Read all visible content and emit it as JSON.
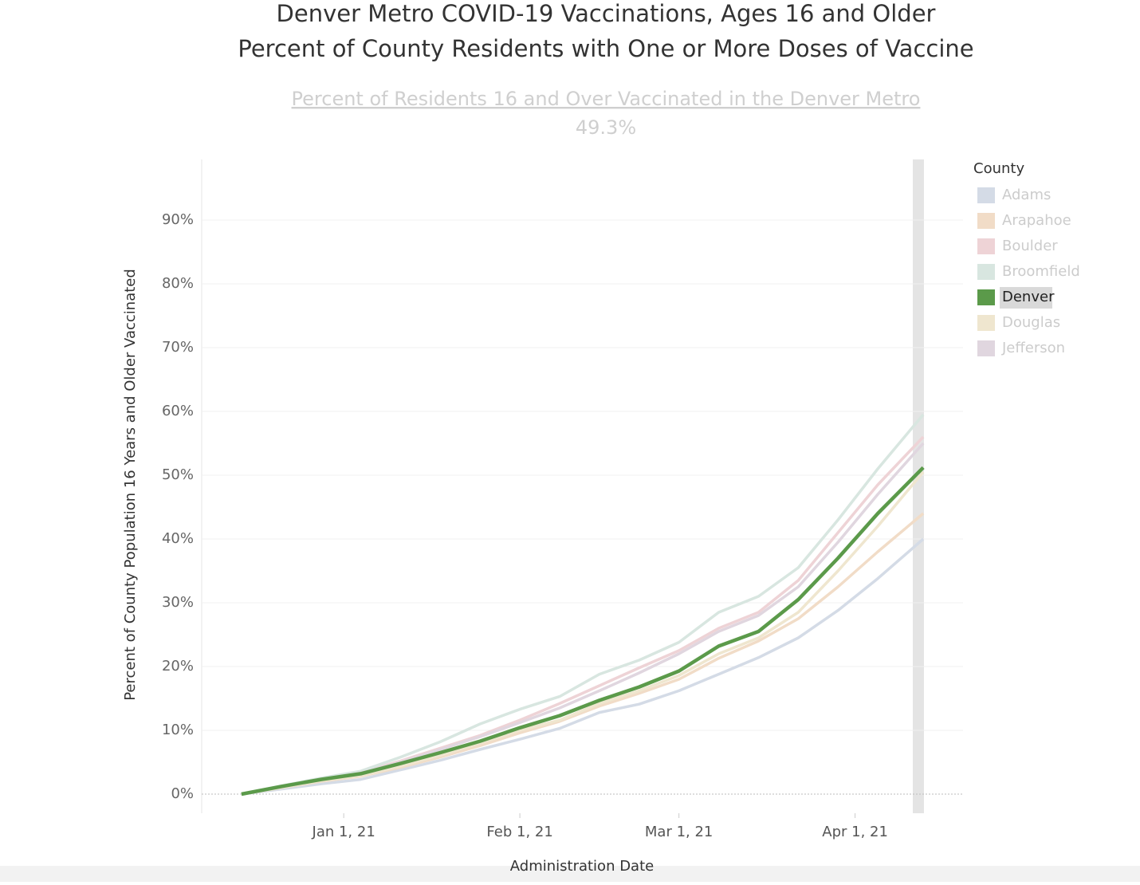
{
  "chart_data": {
    "type": "line",
    "title": "Denver Metro COVID-19 Vaccinations, Ages 16 and Older",
    "subtitle": "Percent of County Residents with One or More Doses of Vaccine",
    "summary_label": "Percent of Residents 16 and Over Vaccinated in the Denver Metro",
    "summary_value": "49.3%",
    "x_label": "Administration Date",
    "y_label": "Percent of County Population 16 Years and Older Vaccinated",
    "legend_title": "County",
    "highlight": "Denver",
    "grid": true,
    "x": [
      "2020-12-14",
      "2020-12-21",
      "2020-12-28",
      "2021-01-04",
      "2021-01-11",
      "2021-01-18",
      "2021-01-25",
      "2021-02-01",
      "2021-02-08",
      "2021-02-15",
      "2021-02-22",
      "2021-03-01",
      "2021-03-08",
      "2021-03-15",
      "2021-03-22",
      "2021-03-29",
      "2021-04-05",
      "2021-04-13"
    ],
    "xlim": [
      "2020-12-07",
      "2021-04-20"
    ],
    "xticks": [
      {
        "value": "2021-01-01",
        "label": "Jan 1, 21"
      },
      {
        "value": "2021-02-01",
        "label": "Feb 1, 21"
      },
      {
        "value": "2021-03-01",
        "label": "Mar 1, 21"
      },
      {
        "value": "2021-04-01",
        "label": "Apr 1, 21"
      }
    ],
    "ylim": [
      -3,
      99.5
    ],
    "yticks": [
      {
        "value": 0,
        "label": "0%"
      },
      {
        "value": 10,
        "label": "10%"
      },
      {
        "value": 20,
        "label": "20%"
      },
      {
        "value": 30,
        "label": "30%"
      },
      {
        "value": 40,
        "label": "40%"
      },
      {
        "value": 50,
        "label": "50%"
      },
      {
        "value": 60,
        "label": "60%"
      },
      {
        "value": 70,
        "label": "70%"
      },
      {
        "value": 80,
        "label": "80%"
      },
      {
        "value": 90,
        "label": "90%"
      }
    ],
    "series": [
      {
        "name": "Adams",
        "color": "#d4dbe6",
        "values": [
          0,
          0.8,
          1.6,
          2.3,
          3.8,
          5.3,
          7.0,
          8.6,
          10.3,
          12.8,
          14.1,
          16.2,
          18.8,
          21.4,
          24.5,
          28.8,
          33.8,
          40
        ]
      },
      {
        "name": "Arapahoe",
        "color": "#f1dcc7",
        "values": [
          0,
          1,
          2,
          2.8,
          4.2,
          5.8,
          7.6,
          9.6,
          11.4,
          13.8,
          15.8,
          18,
          21.3,
          24,
          27.5,
          32.5,
          38,
          44
        ]
      },
      {
        "name": "Boulder",
        "color": "#eed3d6",
        "values": [
          0,
          1.2,
          2.4,
          3.4,
          5.2,
          7.2,
          9.2,
          11.6,
          14.2,
          17,
          19.8,
          22.5,
          26,
          28.5,
          33.5,
          41,
          48.5,
          56
        ]
      },
      {
        "name": "Broomfield",
        "color": "#d8e6e0",
        "values": [
          0,
          1.3,
          2.5,
          3.6,
          5.8,
          8.2,
          11,
          13.3,
          15.3,
          18.8,
          21,
          23.8,
          28.5,
          31,
          35.5,
          43,
          51,
          59.5
        ]
      },
      {
        "name": "Denver",
        "color": "#5b9a4a",
        "values": [
          0,
          1.2,
          2.3,
          3.2,
          4.8,
          6.5,
          8.3,
          10.4,
          12.3,
          14.7,
          16.8,
          19.3,
          23.2,
          25.5,
          30.5,
          37,
          44,
          51.2
        ]
      },
      {
        "name": "Douglas",
        "color": "#efe6cf",
        "values": [
          0,
          1,
          2.1,
          2.9,
          4.4,
          6.1,
          8,
          10,
          11.6,
          14.2,
          16.2,
          18.6,
          22,
          24.5,
          28.5,
          35,
          42,
          50.5
        ]
      },
      {
        "name": "Jefferson",
        "color": "#e0d6df",
        "values": [
          0,
          1.1,
          2.3,
          3.3,
          5,
          7,
          9,
          11.2,
          13.5,
          16.2,
          19,
          22,
          25.5,
          28,
          32.5,
          39.5,
          47,
          55
        ]
      }
    ]
  }
}
